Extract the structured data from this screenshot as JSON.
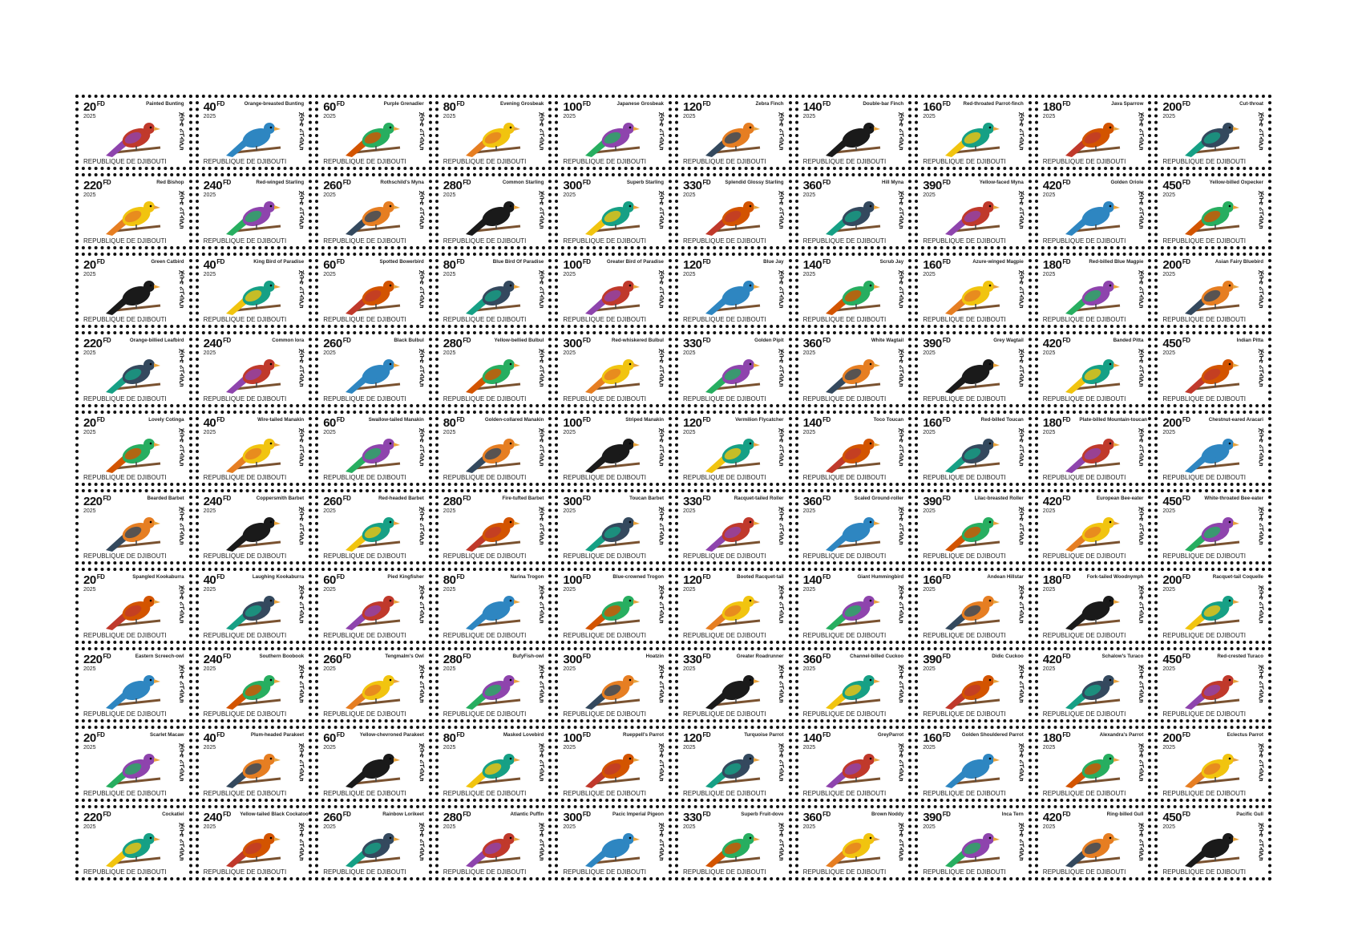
{
  "sheet": {
    "year": "2025",
    "currency": "FD",
    "country": "REPUBLIQUE DE DJIBOUTI",
    "script": "ጅቡቲ ሪፐብሊክ",
    "stamps": [
      [
        {
          "value": 20,
          "name": "Painted Bunting"
        },
        {
          "value": 40,
          "name": "Orange-breasted Bunting"
        },
        {
          "value": 60,
          "name": "Purple Grenadier"
        },
        {
          "value": 80,
          "name": "Evening Grosbeak"
        },
        {
          "value": 100,
          "name": "Japanese Grosbeak"
        },
        {
          "value": 120,
          "name": "Zebra Finch"
        },
        {
          "value": 140,
          "name": "Double-bar Finch"
        },
        {
          "value": 160,
          "name": "Red-throated Parrot-finch"
        },
        {
          "value": 180,
          "name": "Java Sparrow"
        },
        {
          "value": 200,
          "name": "Cut-throat"
        }
      ],
      [
        {
          "value": 220,
          "name": "Red Bishop"
        },
        {
          "value": 240,
          "name": "Red-winged Starling"
        },
        {
          "value": 260,
          "name": "Rothschild's Myna"
        },
        {
          "value": 280,
          "name": "Common Starling"
        },
        {
          "value": 300,
          "name": "Superb Starling"
        },
        {
          "value": 330,
          "name": "Splendid Glossy Starling"
        },
        {
          "value": 360,
          "name": "Hill Myna"
        },
        {
          "value": 390,
          "name": "Yellow-faced Myna"
        },
        {
          "value": 420,
          "name": "Golden Oriole"
        },
        {
          "value": 450,
          "name": "Yellow-billed Oxpecker"
        }
      ],
      [
        {
          "value": 20,
          "name": "Green Catbird"
        },
        {
          "value": 40,
          "name": "King Bird of Paradise"
        },
        {
          "value": 60,
          "name": "Spotted Bowerbird"
        },
        {
          "value": 80,
          "name": "Blue Bird Of Paradise"
        },
        {
          "value": 100,
          "name": "Greater Bird of Paradise"
        },
        {
          "value": 120,
          "name": "Blue Jay"
        },
        {
          "value": 140,
          "name": "Scrub Jay"
        },
        {
          "value": 160,
          "name": "Azure-winged Magpie"
        },
        {
          "value": 180,
          "name": "Red-billed Blue Magpie"
        },
        {
          "value": 200,
          "name": "Asian Fairy Bluebird"
        }
      ],
      [
        {
          "value": 220,
          "name": "Orange-billied Leafbird"
        },
        {
          "value": 240,
          "name": "Common Iora"
        },
        {
          "value": 260,
          "name": "Black Bulbul"
        },
        {
          "value": 280,
          "name": "Yellow-bellied Bulbul"
        },
        {
          "value": 300,
          "name": "Red-whiskered Bulbul"
        },
        {
          "value": 330,
          "name": "Golden Pipit"
        },
        {
          "value": 360,
          "name": "White Wagtail"
        },
        {
          "value": 390,
          "name": "Grey Wagtail"
        },
        {
          "value": 420,
          "name": "Banded Pitta"
        },
        {
          "value": 450,
          "name": "Indian Pitta"
        }
      ],
      [
        {
          "value": 20,
          "name": "Lovely Cotinga"
        },
        {
          "value": 40,
          "name": "Wire-tailed Manakin"
        },
        {
          "value": 60,
          "name": "Swallow-tailed Manakin"
        },
        {
          "value": 80,
          "name": "Golden-collared Manakin"
        },
        {
          "value": 100,
          "name": "Striped Manakin"
        },
        {
          "value": 120,
          "name": "Vermilion Flycatcher"
        },
        {
          "value": 140,
          "name": "Toco Toucan"
        },
        {
          "value": 160,
          "name": "Red-billed Toucan"
        },
        {
          "value": 180,
          "name": "Plate-billed Mountain-toucan"
        },
        {
          "value": 200,
          "name": "Chestnut-eared Aracari"
        }
      ],
      [
        {
          "value": 220,
          "name": "Bearded Barbet"
        },
        {
          "value": 240,
          "name": "Coppersmith Barbet"
        },
        {
          "value": 260,
          "name": "Red-headed Barbet"
        },
        {
          "value": 280,
          "name": "Fire-tufted Barbet"
        },
        {
          "value": 300,
          "name": "Toucan Barbet"
        },
        {
          "value": 330,
          "name": "Racquet-tailed Roller"
        },
        {
          "value": 360,
          "name": "Scaled Ground-roller"
        },
        {
          "value": 390,
          "name": "Lilac-breasted Roller"
        },
        {
          "value": 420,
          "name": "European Bee-eater"
        },
        {
          "value": 450,
          "name": "White-throated Bee-eater"
        }
      ],
      [
        {
          "value": 20,
          "name": "Spangled Kookaburra"
        },
        {
          "value": 40,
          "name": "Laughing Kookaburra"
        },
        {
          "value": 60,
          "name": "Pied Kingfisher"
        },
        {
          "value": 80,
          "name": "Narina Trogon"
        },
        {
          "value": 100,
          "name": "Blue-crowned Trogon"
        },
        {
          "value": 120,
          "name": "Booted Racquet-tail"
        },
        {
          "value": 140,
          "name": "Giant Hummingbird"
        },
        {
          "value": 160,
          "name": "Andean Hillstar"
        },
        {
          "value": 180,
          "name": "Fork-tailed Woodnymph"
        },
        {
          "value": 200,
          "name": "Racquet-tail Coquelle"
        }
      ],
      [
        {
          "value": 220,
          "name": "Eastern Screech-owl"
        },
        {
          "value": 240,
          "name": "Southern Boobook"
        },
        {
          "value": 260,
          "name": "Tengmalm's Owl"
        },
        {
          "value": 280,
          "name": "BufyFish-owl"
        },
        {
          "value": 300,
          "name": "Hoatzin"
        },
        {
          "value": 330,
          "name": "Greater Roadrunner"
        },
        {
          "value": 360,
          "name": "Channel-billed Cuckoo"
        },
        {
          "value": 390,
          "name": "Didic Cuckoo"
        },
        {
          "value": 420,
          "name": "Schalow's Turaco"
        },
        {
          "value": 450,
          "name": "Red-crested Turaco"
        }
      ],
      [
        {
          "value": 20,
          "name": "Scarlet Macaw"
        },
        {
          "value": 40,
          "name": "Plum-headed Parakeet"
        },
        {
          "value": 60,
          "name": "Yellow-chevroned Parakeet"
        },
        {
          "value": 80,
          "name": "Masked Lovebird"
        },
        {
          "value": 100,
          "name": "Rueppell's Parrot"
        },
        {
          "value": 120,
          "name": "Turquoise Parrot"
        },
        {
          "value": 140,
          "name": "GreyParrot"
        },
        {
          "value": 160,
          "name": "Golden Shouldered Parrot"
        },
        {
          "value": 180,
          "name": "Alexandra's Parrot"
        },
        {
          "value": 200,
          "name": "Eclectus Parrot"
        }
      ],
      [
        {
          "value": 220,
          "name": "Cockatiel"
        },
        {
          "value": 240,
          "name": "Yellow-tailed Black Cockatoo"
        },
        {
          "value": 260,
          "name": "Rainbow Lorikeet"
        },
        {
          "value": 280,
          "name": "Atlantic Puffin"
        },
        {
          "value": 300,
          "name": "Pacic Imperial Pigeon"
        },
        {
          "value": 330,
          "name": "Superb Fruit-dove"
        },
        {
          "value": 360,
          "name": "Brown Noddy"
        },
        {
          "value": 390,
          "name": "Inca Tern"
        },
        {
          "value": 420,
          "name": "Ring-billed Gull"
        },
        {
          "value": 450,
          "name": "Pacific Gull"
        }
      ]
    ]
  }
}
